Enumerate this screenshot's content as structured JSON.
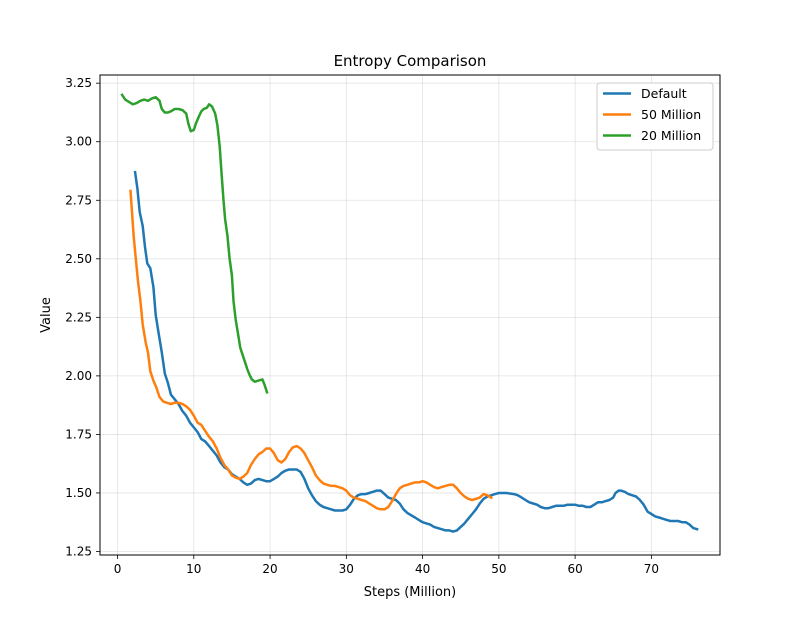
{
  "chart_data": {
    "type": "line",
    "title": "Entropy Comparison",
    "xlabel": "Steps (Million)",
    "ylabel": "Value",
    "xlim": [
      -2.3,
      79
    ],
    "ylim": [
      1.235,
      3.285
    ],
    "xticks": [
      0,
      10,
      20,
      30,
      40,
      50,
      60,
      70
    ],
    "yticks": [
      1.25,
      1.5,
      1.75,
      2.0,
      2.25,
      2.5,
      2.75,
      3.0,
      3.25
    ],
    "ytick_labels": [
      "1.25",
      "1.50",
      "1.75",
      "2.00",
      "2.25",
      "2.50",
      "2.75",
      "3.00",
      "3.25"
    ],
    "grid": true,
    "legend_position": "top-right",
    "series": [
      {
        "name": "Default",
        "color": "#1f77b4",
        "points": [
          [
            2.3,
            2.87
          ],
          [
            2.6,
            2.8
          ],
          [
            2.9,
            2.7
          ],
          [
            3.3,
            2.64
          ],
          [
            3.6,
            2.55
          ],
          [
            3.9,
            2.48
          ],
          [
            4.3,
            2.46
          ],
          [
            4.7,
            2.38
          ],
          [
            5.0,
            2.26
          ],
          [
            5.4,
            2.18
          ],
          [
            5.8,
            2.1
          ],
          [
            6.2,
            2.01
          ],
          [
            6.6,
            1.97
          ],
          [
            7.0,
            1.92
          ],
          [
            7.5,
            1.9
          ],
          [
            8.0,
            1.88
          ],
          [
            8.5,
            1.85
          ],
          [
            9.0,
            1.83
          ],
          [
            9.5,
            1.8
          ],
          [
            10.0,
            1.78
          ],
          [
            10.5,
            1.76
          ],
          [
            11.0,
            1.73
          ],
          [
            11.5,
            1.72
          ],
          [
            12.0,
            1.7
          ],
          [
            12.5,
            1.68
          ],
          [
            13.0,
            1.66
          ],
          [
            13.5,
            1.63
          ],
          [
            14.0,
            1.61
          ],
          [
            14.5,
            1.6
          ],
          [
            15.0,
            1.58
          ],
          [
            15.5,
            1.57
          ],
          [
            16.0,
            1.56
          ],
          [
            16.5,
            1.545
          ],
          [
            17.0,
            1.535
          ],
          [
            17.5,
            1.54
          ],
          [
            18.0,
            1.555
          ],
          [
            18.5,
            1.56
          ],
          [
            19.0,
            1.555
          ],
          [
            19.5,
            1.55
          ],
          [
            20.0,
            1.55
          ],
          [
            20.5,
            1.56
          ],
          [
            21.0,
            1.57
          ],
          [
            21.5,
            1.585
          ],
          [
            22.0,
            1.595
          ],
          [
            22.5,
            1.6
          ],
          [
            23.0,
            1.6
          ],
          [
            23.5,
            1.6
          ],
          [
            24.0,
            1.59
          ],
          [
            24.5,
            1.56
          ],
          [
            25.0,
            1.52
          ],
          [
            25.5,
            1.49
          ],
          [
            26.0,
            1.465
          ],
          [
            26.5,
            1.45
          ],
          [
            27.0,
            1.44
          ],
          [
            27.5,
            1.435
          ],
          [
            28.0,
            1.43
          ],
          [
            28.5,
            1.425
          ],
          [
            29.0,
            1.425
          ],
          [
            29.5,
            1.425
          ],
          [
            30.0,
            1.43
          ],
          [
            30.5,
            1.45
          ],
          [
            31.0,
            1.475
          ],
          [
            31.5,
            1.49
          ],
          [
            32.0,
            1.495
          ],
          [
            32.5,
            1.495
          ],
          [
            33.0,
            1.5
          ],
          [
            33.5,
            1.505
          ],
          [
            34.0,
            1.51
          ],
          [
            34.5,
            1.51
          ],
          [
            35.0,
            1.495
          ],
          [
            35.5,
            1.48
          ],
          [
            36.0,
            1.475
          ],
          [
            36.5,
            1.47
          ],
          [
            37.0,
            1.455
          ],
          [
            37.5,
            1.43
          ],
          [
            38.0,
            1.415
          ],
          [
            38.5,
            1.405
          ],
          [
            39.0,
            1.395
          ],
          [
            39.5,
            1.385
          ],
          [
            40.0,
            1.375
          ],
          [
            40.5,
            1.37
          ],
          [
            41.0,
            1.365
          ],
          [
            41.5,
            1.355
          ],
          [
            42.0,
            1.35
          ],
          [
            42.5,
            1.345
          ],
          [
            43.0,
            1.34
          ],
          [
            43.5,
            1.34
          ],
          [
            44.0,
            1.335
          ],
          [
            44.5,
            1.34
          ],
          [
            45.0,
            1.355
          ],
          [
            45.5,
            1.37
          ],
          [
            46.0,
            1.39
          ],
          [
            46.5,
            1.41
          ],
          [
            47.0,
            1.43
          ],
          [
            47.5,
            1.455
          ],
          [
            48.0,
            1.475
          ],
          [
            48.5,
            1.485
          ],
          [
            49.0,
            1.49
          ],
          [
            49.5,
            1.495
          ],
          [
            50.0,
            1.5
          ],
          [
            51.0,
            1.5
          ],
          [
            52.0,
            1.495
          ],
          [
            52.5,
            1.49
          ],
          [
            53.0,
            1.48
          ],
          [
            53.5,
            1.47
          ],
          [
            54.0,
            1.46
          ],
          [
            54.5,
            1.455
          ],
          [
            55.0,
            1.45
          ],
          [
            55.5,
            1.44
          ],
          [
            56.0,
            1.435
          ],
          [
            56.5,
            1.435
          ],
          [
            57.0,
            1.44
          ],
          [
            57.5,
            1.445
          ],
          [
            58.0,
            1.445
          ],
          [
            58.5,
            1.445
          ],
          [
            59.0,
            1.45
          ],
          [
            59.5,
            1.45
          ],
          [
            60.0,
            1.45
          ],
          [
            60.5,
            1.445
          ],
          [
            61.0,
            1.445
          ],
          [
            61.5,
            1.44
          ],
          [
            62.0,
            1.44
          ],
          [
            62.5,
            1.45
          ],
          [
            63.0,
            1.46
          ],
          [
            63.5,
            1.46
          ],
          [
            64.0,
            1.465
          ],
          [
            64.5,
            1.47
          ],
          [
            65.0,
            1.48
          ],
          [
            65.3,
            1.5
          ],
          [
            65.7,
            1.51
          ],
          [
            66.0,
            1.51
          ],
          [
            66.5,
            1.505
          ],
          [
            67.0,
            1.495
          ],
          [
            67.5,
            1.49
          ],
          [
            68.0,
            1.485
          ],
          [
            68.5,
            1.47
          ],
          [
            69.0,
            1.45
          ],
          [
            69.5,
            1.42
          ],
          [
            70.0,
            1.41
          ],
          [
            70.5,
            1.4
          ],
          [
            71.0,
            1.395
          ],
          [
            71.5,
            1.39
          ],
          [
            72.0,
            1.385
          ],
          [
            72.5,
            1.38
          ],
          [
            73.0,
            1.38
          ],
          [
            73.5,
            1.38
          ],
          [
            74.0,
            1.375
          ],
          [
            74.5,
            1.375
          ],
          [
            75.0,
            1.365
          ],
          [
            75.5,
            1.35
          ],
          [
            76.0,
            1.345
          ]
        ]
      },
      {
        "name": "50 Million",
        "color": "#ff7f0e",
        "points": [
          [
            1.7,
            2.79
          ],
          [
            1.9,
            2.7
          ],
          [
            2.1,
            2.6
          ],
          [
            2.4,
            2.5
          ],
          [
            2.7,
            2.4
          ],
          [
            3.0,
            2.32
          ],
          [
            3.3,
            2.22
          ],
          [
            3.7,
            2.14
          ],
          [
            4.0,
            2.1
          ],
          [
            4.3,
            2.02
          ],
          [
            4.7,
            1.98
          ],
          [
            5.1,
            1.95
          ],
          [
            5.5,
            1.91
          ],
          [
            6.0,
            1.89
          ],
          [
            6.5,
            1.885
          ],
          [
            7.0,
            1.88
          ],
          [
            7.5,
            1.885
          ],
          [
            8.0,
            1.885
          ],
          [
            8.5,
            1.88
          ],
          [
            9.0,
            1.87
          ],
          [
            9.5,
            1.855
          ],
          [
            10.0,
            1.83
          ],
          [
            10.5,
            1.8
          ],
          [
            11.0,
            1.79
          ],
          [
            11.5,
            1.765
          ],
          [
            12.0,
            1.74
          ],
          [
            12.5,
            1.72
          ],
          [
            13.0,
            1.69
          ],
          [
            13.5,
            1.65
          ],
          [
            14.0,
            1.62
          ],
          [
            14.5,
            1.6
          ],
          [
            15.0,
            1.575
          ],
          [
            15.5,
            1.565
          ],
          [
            16.0,
            1.56
          ],
          [
            16.5,
            1.57
          ],
          [
            17.0,
            1.585
          ],
          [
            17.5,
            1.62
          ],
          [
            18.0,
            1.645
          ],
          [
            18.5,
            1.665
          ],
          [
            19.0,
            1.675
          ],
          [
            19.5,
            1.69
          ],
          [
            20.0,
            1.69
          ],
          [
            20.5,
            1.67
          ],
          [
            21.0,
            1.64
          ],
          [
            21.5,
            1.63
          ],
          [
            22.0,
            1.645
          ],
          [
            22.5,
            1.675
          ],
          [
            23.0,
            1.695
          ],
          [
            23.5,
            1.7
          ],
          [
            24.0,
            1.69
          ],
          [
            24.5,
            1.67
          ],
          [
            25.0,
            1.64
          ],
          [
            25.5,
            1.61
          ],
          [
            26.0,
            1.575
          ],
          [
            26.5,
            1.555
          ],
          [
            27.0,
            1.54
          ],
          [
            27.5,
            1.535
          ],
          [
            28.0,
            1.53
          ],
          [
            28.5,
            1.53
          ],
          [
            29.0,
            1.525
          ],
          [
            29.5,
            1.52
          ],
          [
            30.0,
            1.51
          ],
          [
            30.5,
            1.49
          ],
          [
            31.0,
            1.48
          ],
          [
            31.5,
            1.475
          ],
          [
            32.0,
            1.47
          ],
          [
            32.5,
            1.465
          ],
          [
            33.0,
            1.455
          ],
          [
            33.5,
            1.445
          ],
          [
            34.0,
            1.435
          ],
          [
            34.5,
            1.43
          ],
          [
            35.0,
            1.43
          ],
          [
            35.5,
            1.44
          ],
          [
            36.0,
            1.465
          ],
          [
            36.5,
            1.495
          ],
          [
            37.0,
            1.52
          ],
          [
            37.5,
            1.53
          ],
          [
            38.0,
            1.535
          ],
          [
            38.5,
            1.54
          ],
          [
            39.0,
            1.545
          ],
          [
            39.5,
            1.545
          ],
          [
            40.0,
            1.55
          ],
          [
            40.5,
            1.545
          ],
          [
            41.0,
            1.535
          ],
          [
            41.5,
            1.525
          ],
          [
            42.0,
            1.52
          ],
          [
            42.5,
            1.525
          ],
          [
            43.0,
            1.53
          ],
          [
            43.5,
            1.535
          ],
          [
            44.0,
            1.535
          ],
          [
            44.5,
            1.52
          ],
          [
            45.0,
            1.5
          ],
          [
            45.5,
            1.485
          ],
          [
            46.0,
            1.475
          ],
          [
            46.5,
            1.47
          ],
          [
            47.0,
            1.475
          ],
          [
            47.5,
            1.48
          ],
          [
            48.0,
            1.495
          ],
          [
            48.5,
            1.49
          ],
          [
            49.0,
            1.48
          ]
        ]
      },
      {
        "name": "20 Million",
        "color": "#2ca02c",
        "points": [
          [
            0.6,
            3.2
          ],
          [
            1.0,
            3.18
          ],
          [
            1.5,
            3.17
          ],
          [
            2.0,
            3.16
          ],
          [
            2.5,
            3.165
          ],
          [
            3.0,
            3.175
          ],
          [
            3.5,
            3.18
          ],
          [
            4.0,
            3.175
          ],
          [
            4.5,
            3.185
          ],
          [
            5.0,
            3.19
          ],
          [
            5.5,
            3.175
          ],
          [
            5.8,
            3.14
          ],
          [
            6.2,
            3.125
          ],
          [
            6.6,
            3.125
          ],
          [
            7.0,
            3.13
          ],
          [
            7.5,
            3.14
          ],
          [
            8.0,
            3.14
          ],
          [
            8.5,
            3.135
          ],
          [
            9.0,
            3.12
          ],
          [
            9.3,
            3.075
          ],
          [
            9.6,
            3.045
          ],
          [
            10.0,
            3.05
          ],
          [
            10.3,
            3.08
          ],
          [
            10.7,
            3.11
          ],
          [
            11.0,
            3.13
          ],
          [
            11.3,
            3.14
          ],
          [
            11.7,
            3.145
          ],
          [
            12.0,
            3.16
          ],
          [
            12.4,
            3.15
          ],
          [
            12.8,
            3.12
          ],
          [
            13.1,
            3.07
          ],
          [
            13.4,
            2.98
          ],
          [
            13.6,
            2.88
          ],
          [
            13.9,
            2.75
          ],
          [
            14.1,
            2.67
          ],
          [
            14.4,
            2.6
          ],
          [
            14.7,
            2.5
          ],
          [
            15.0,
            2.43
          ],
          [
            15.2,
            2.32
          ],
          [
            15.5,
            2.24
          ],
          [
            15.8,
            2.18
          ],
          [
            16.1,
            2.12
          ],
          [
            16.4,
            2.09
          ],
          [
            16.7,
            2.06
          ],
          [
            17.0,
            2.03
          ],
          [
            17.3,
            2.005
          ],
          [
            17.6,
            1.985
          ],
          [
            18.0,
            1.975
          ],
          [
            18.5,
            1.98
          ],
          [
            19.0,
            1.985
          ],
          [
            19.3,
            1.96
          ],
          [
            19.6,
            1.93
          ]
        ]
      }
    ]
  }
}
